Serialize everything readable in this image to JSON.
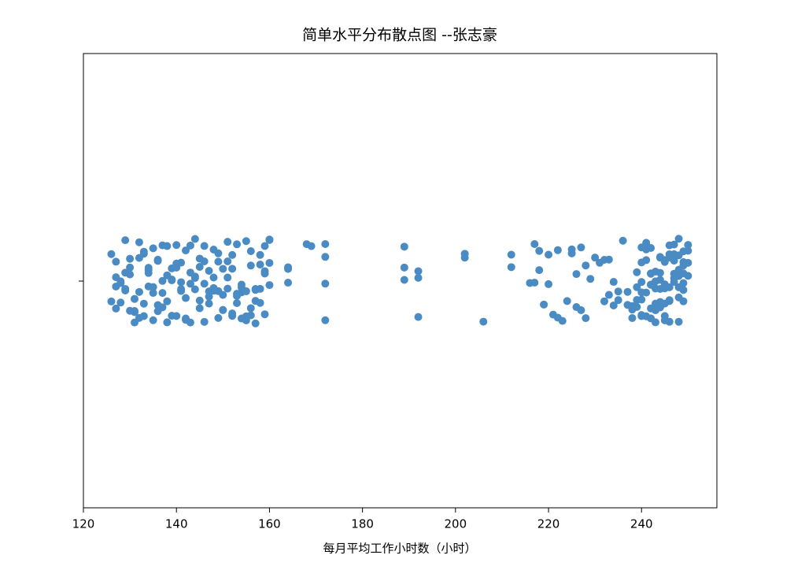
{
  "chart_data": {
    "type": "strip",
    "title": "简单水平分布散点图 --张志豪",
    "xlabel": "每月平均工作小时数（小时）",
    "color": "#4a8bc4",
    "xlim": [
      120,
      256.2
    ],
    "xticks": [
      120,
      140,
      160,
      180,
      200,
      220,
      240
    ],
    "x": [
      126,
      126,
      127,
      127,
      127,
      127,
      128,
      128,
      128,
      128,
      129,
      129,
      129,
      129,
      130,
      130,
      130,
      130,
      131,
      131,
      131,
      131,
      132,
      132,
      132,
      132,
      133,
      133,
      133,
      133,
      134,
      134,
      134,
      134,
      135,
      135,
      135,
      135,
      136,
      136,
      136,
      136,
      137,
      137,
      137,
      137,
      138,
      138,
      138,
      138,
      139,
      139,
      139,
      139,
      140,
      140,
      140,
      140,
      141,
      141,
      141,
      141,
      142,
      142,
      142,
      142,
      143,
      143,
      143,
      143,
      144,
      144,
      144,
      144,
      145,
      145,
      145,
      145,
      146,
      146,
      146,
      146,
      147,
      147,
      147,
      147,
      148,
      148,
      148,
      148,
      149,
      149,
      149,
      149,
      150,
      150,
      150,
      150,
      151,
      151,
      151,
      151,
      152,
      152,
      152,
      152,
      153,
      153,
      153,
      153,
      154,
      154,
      154,
      154,
      155,
      155,
      155,
      155,
      156,
      156,
      156,
      156,
      157,
      157,
      157,
      157,
      158,
      158,
      158,
      158,
      159,
      159,
      159,
      159,
      160,
      160,
      160,
      160,
      164,
      164,
      164,
      168,
      169,
      172,
      172,
      172,
      172,
      189,
      189,
      189,
      192,
      192,
      192,
      202,
      202,
      206,
      212,
      212,
      216,
      217,
      217,
      218,
      218,
      219,
      220,
      220,
      221,
      222,
      222,
      223,
      224,
      225,
      225,
      226,
      226,
      227,
      227,
      228,
      228,
      229,
      230,
      231,
      232,
      232,
      233,
      233,
      234,
      234,
      235,
      235,
      236,
      237,
      237,
      238,
      238,
      238,
      239,
      239,
      239,
      239,
      240,
      240,
      240,
      240,
      240,
      240,
      240,
      241,
      241,
      241,
      241,
      241,
      241,
      241,
      242,
      242,
      242,
      242,
      242,
      242,
      242,
      243,
      243,
      243,
      243,
      243,
      243,
      243,
      244,
      244,
      244,
      244,
      244,
      244,
      244,
      245,
      245,
      245,
      245,
      245,
      245,
      245,
      246,
      246,
      246,
      246,
      246,
      246,
      246,
      247,
      247,
      247,
      247,
      247,
      247,
      247,
      248,
      248,
      248,
      248,
      248,
      248,
      248,
      249,
      249,
      249,
      249,
      249,
      249,
      249,
      250,
      250,
      250,
      250
    ]
  }
}
